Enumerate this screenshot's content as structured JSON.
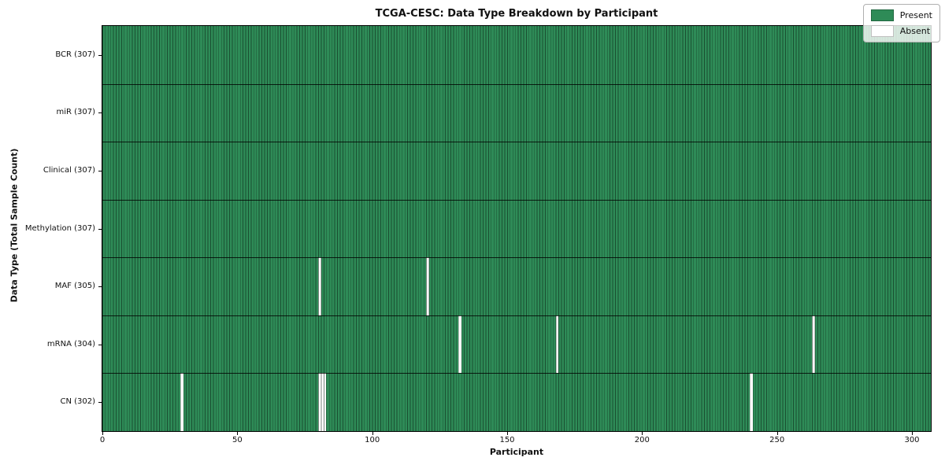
{
  "chart_data": {
    "type": "heatmap",
    "title": "TCGA-CESC: Data Type Breakdown by Participant",
    "xlabel": "Participant",
    "ylabel": "Data Type (Total Sample Count)",
    "x_ticks": [
      0,
      50,
      100,
      150,
      200,
      250,
      300
    ],
    "x_range": [
      0,
      307
    ],
    "total_participants": 307,
    "grid": "cell borders on",
    "legend_position": "upper right",
    "rows": [
      {
        "label": "BCR (307)",
        "name": "BCR",
        "present_count": 307,
        "absent_participants": []
      },
      {
        "label": "miR (307)",
        "name": "miR",
        "present_count": 307,
        "absent_participants": []
      },
      {
        "label": "Clinical (307)",
        "name": "Clinical",
        "present_count": 307,
        "absent_participants": []
      },
      {
        "label": "Methylation (307)",
        "name": "Methylation",
        "present_count": 307,
        "absent_participants": []
      },
      {
        "label": "MAF (305)",
        "name": "MAF",
        "present_count": 305,
        "absent_participants": [
          80,
          120
        ]
      },
      {
        "label": "mRNA (304)",
        "name": "mRNA",
        "present_count": 304,
        "absent_participants": [
          132,
          168,
          263
        ]
      },
      {
        "label": "CN (302)",
        "name": "CN",
        "present_count": 302,
        "absent_participants": [
          29,
          80,
          81,
          82,
          240
        ]
      }
    ],
    "legend": [
      {
        "label": "Present",
        "color": "#2e8b57"
      },
      {
        "label": "Absent",
        "color": "#ffffff"
      }
    ],
    "colors": {
      "present": "#2e8b57",
      "absent": "#ffffff",
      "cell_border": "rgba(10,30,18,0.55)",
      "row_border": "rgba(0,0,0,0.8)",
      "axis": "#000000",
      "text": "#111111"
    }
  }
}
